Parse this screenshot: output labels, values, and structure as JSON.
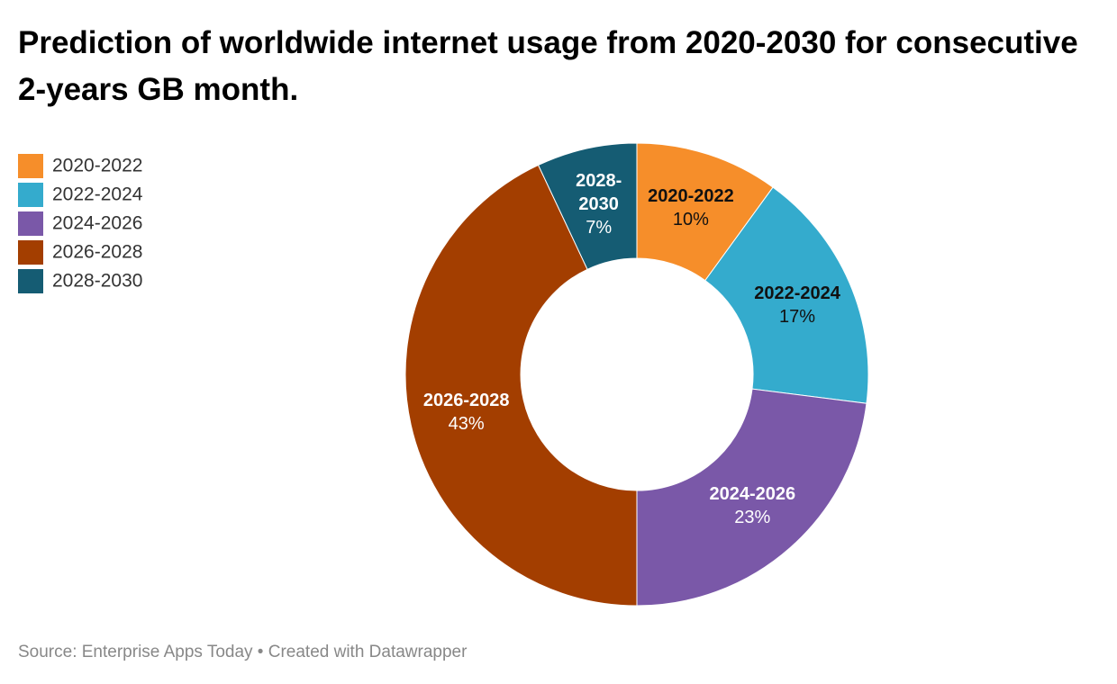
{
  "chart_data": {
    "type": "donut",
    "title": "Prediction of worldwide internet usage from 2020-2030 for consecutive 2-years GB month.",
    "categories": [
      "2020-2022",
      "2022-2024",
      "2024-2026",
      "2026-2028",
      "2028-2030"
    ],
    "values": [
      10,
      17,
      23,
      43,
      7
    ],
    "value_labels": [
      "10%",
      "17%",
      "23%",
      "43%",
      "7%"
    ],
    "colors": [
      "#f68e2a",
      "#34abcd",
      "#7a58a8",
      "#a33e00",
      "#155c73"
    ],
    "legend": "top-left",
    "source": "Source: Enterprise Apps Today • Created with Datawrapper"
  }
}
